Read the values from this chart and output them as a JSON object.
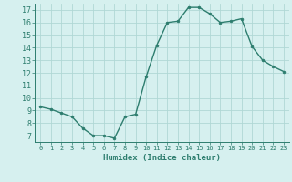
{
  "x": [
    0,
    1,
    2,
    3,
    4,
    5,
    6,
    7,
    8,
    9,
    10,
    11,
    12,
    13,
    14,
    15,
    16,
    17,
    18,
    19,
    20,
    21,
    22,
    23
  ],
  "y": [
    9.3,
    9.1,
    8.8,
    8.5,
    7.6,
    7.0,
    7.0,
    6.8,
    8.5,
    8.7,
    11.7,
    14.2,
    16.0,
    16.1,
    17.2,
    17.2,
    16.7,
    16.0,
    16.1,
    16.3,
    14.1,
    13.0,
    12.5,
    12.1
  ],
  "xlim": [
    -0.5,
    23.5
  ],
  "ylim": [
    6.5,
    17.5
  ],
  "yticks": [
    7,
    8,
    9,
    10,
    11,
    12,
    13,
    14,
    15,
    16,
    17
  ],
  "xticks": [
    0,
    1,
    2,
    3,
    4,
    5,
    6,
    7,
    8,
    9,
    10,
    11,
    12,
    13,
    14,
    15,
    16,
    17,
    18,
    19,
    20,
    21,
    22,
    23
  ],
  "xlabel": "Humidex (Indice chaleur)",
  "line_color": "#2d7d6e",
  "marker": "o",
  "marker_size": 2,
  "bg_color": "#d6f0ef",
  "grid_color": "#b0d8d5",
  "tick_color": "#2d7d6e"
}
